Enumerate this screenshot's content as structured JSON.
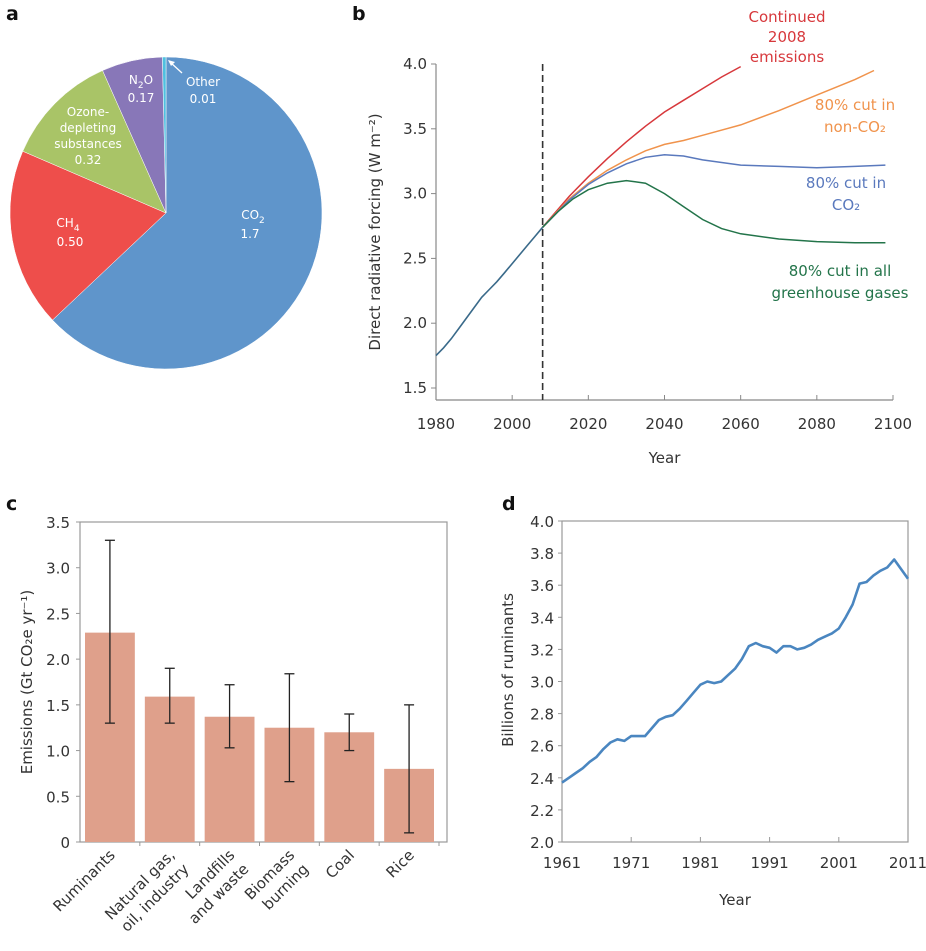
{
  "chart_data": [
    {
      "panel": "a",
      "type": "pie",
      "title": "",
      "slices": [
        {
          "label": "CO2",
          "label_main": "CO",
          "label_sub": "2",
          "value": 1.7,
          "value_text": "1.7",
          "color": "#5f95cb"
        },
        {
          "label": "CH4",
          "label_main": "CH",
          "label_sub": "4",
          "value": 0.5,
          "value_text": "0.50",
          "color": "#ee4e4b"
        },
        {
          "label": "Ozone-depleting substances",
          "lines": [
            "Ozone-",
            "depleting",
            "substances"
          ],
          "value": 0.32,
          "value_text": "0.32",
          "color": "#a9c467"
        },
        {
          "label": "N2O",
          "label_main": "N",
          "label_sub": "2",
          "label_tail": "O",
          "value": 0.17,
          "value_text": "0.17",
          "color": "#8877b8"
        },
        {
          "label": "Other",
          "value": 0.01,
          "value_text": "0.01",
          "color": "#4fc0e0"
        }
      ]
    },
    {
      "panel": "b",
      "type": "line",
      "xlabel": "Year",
      "ylabel": "Direct radiative forcing (W m⁻²)",
      "xlim": [
        1980,
        2100
      ],
      "ylim": [
        1.4,
        4.0
      ],
      "xticks": [
        1980,
        2000,
        2020,
        2040,
        2060,
        2080,
        2100
      ],
      "yticks": [
        "1.5",
        "2.0",
        "2.5",
        "3.0",
        "3.5",
        "4.0"
      ],
      "yticks_values": [
        1.5,
        2.0,
        2.5,
        3.0,
        3.5,
        4.0
      ],
      "vline": 2008,
      "history": {
        "x": [
          1980,
          1982,
          1984,
          1986,
          1988,
          1990,
          1992,
          1994,
          1996,
          1998,
          2000,
          2002,
          2004,
          2006,
          2008
        ],
        "y": [
          1.75,
          1.81,
          1.88,
          1.96,
          2.04,
          2.12,
          2.2,
          2.26,
          2.32,
          2.39,
          2.46,
          2.53,
          2.6,
          2.67,
          2.74
        ]
      },
      "series": [
        {
          "name": "Continued 2008 emissions",
          "label_lines": [
            "Continued",
            "2008",
            "emissions"
          ],
          "color": "#d7383c",
          "x": [
            2008,
            2015,
            2020,
            2025,
            2030,
            2035,
            2040,
            2045,
            2050,
            2055,
            2060
          ],
          "y": [
            2.74,
            2.98,
            3.13,
            3.27,
            3.4,
            3.52,
            3.63,
            3.72,
            3.81,
            3.9,
            3.98
          ]
        },
        {
          "name": "80% cut in non-CO2",
          "label_lines": [
            "80% cut in",
            "non-CO₂"
          ],
          "color": "#f0934c",
          "x": [
            2008,
            2015,
            2020,
            2025,
            2030,
            2035,
            2040,
            2045,
            2050,
            2060,
            2070,
            2080,
            2090,
            2095
          ],
          "y": [
            2.74,
            2.96,
            3.08,
            3.18,
            3.26,
            3.33,
            3.38,
            3.41,
            3.45,
            3.53,
            3.64,
            3.76,
            3.88,
            3.95
          ]
        },
        {
          "name": "80% cut in CO2",
          "label_lines": [
            "80% cut in",
            "CO₂"
          ],
          "color": "#5a79bd",
          "x": [
            2008,
            2015,
            2020,
            2025,
            2030,
            2035,
            2040,
            2045,
            2050,
            2060,
            2070,
            2080,
            2090,
            2098
          ],
          "y": [
            2.74,
            2.95,
            3.07,
            3.16,
            3.23,
            3.28,
            3.3,
            3.29,
            3.26,
            3.22,
            3.21,
            3.2,
            3.21,
            3.22
          ]
        },
        {
          "name": "80% cut in all greenhouse gases",
          "label_lines": [
            "80% cut in all",
            "greenhouse gases"
          ],
          "color": "#23744a",
          "x": [
            2008,
            2012,
            2016,
            2020,
            2025,
            2030,
            2035,
            2040,
            2045,
            2050,
            2055,
            2060,
            2070,
            2080,
            2090,
            2098
          ],
          "y": [
            2.74,
            2.86,
            2.96,
            3.03,
            3.08,
            3.1,
            3.08,
            3.0,
            2.9,
            2.8,
            2.73,
            2.69,
            2.65,
            2.63,
            2.62,
            2.62
          ]
        }
      ]
    },
    {
      "panel": "c",
      "type": "bar",
      "xlabel": "",
      "ylabel": "Emissions (Gt CO₂e yr⁻¹)",
      "ylim": [
        0,
        3.5
      ],
      "yticks": [
        "0",
        "0.5",
        "1.0",
        "1.5",
        "2.0",
        "2.5",
        "3.0",
        "3.5"
      ],
      "yticks_values": [
        0,
        0.5,
        1.0,
        1.5,
        2.0,
        2.5,
        3.0,
        3.5
      ],
      "bar_color": "#dfa08b",
      "categories": [
        "Ruminants",
        "Natural gas, oil, industry",
        "Landfills and waste",
        "Biomass burning",
        "Coal",
        "Rice"
      ],
      "category_lines": [
        [
          "Ruminants"
        ],
        [
          "Natural gas,",
          "oil, industry"
        ],
        [
          "Landfills",
          "and waste"
        ],
        [
          "Biomass",
          "burning"
        ],
        [
          "Coal"
        ],
        [
          "Rice"
        ]
      ],
      "values": [
        2.29,
        1.59,
        1.37,
        1.25,
        1.2,
        0.8
      ],
      "error_low": [
        1.3,
        1.3,
        1.03,
        0.66,
        1.0,
        0.1
      ],
      "error_high": [
        3.3,
        1.9,
        1.72,
        1.84,
        1.4,
        1.5
      ]
    },
    {
      "panel": "d",
      "type": "line",
      "xlabel": "Year",
      "ylabel": "Billions of ruminants",
      "xlim": [
        1961,
        2011
      ],
      "ylim": [
        2.0,
        4.0
      ],
      "xticks": [
        1961,
        1971,
        1981,
        1991,
        2001,
        2011
      ],
      "yticks": [
        "2.0",
        "2.2",
        "2.4",
        "2.6",
        "2.8",
        "3.0",
        "3.2",
        "3.4",
        "3.6",
        "3.8",
        "4.0"
      ],
      "yticks_values": [
        2.0,
        2.2,
        2.4,
        2.6,
        2.8,
        3.0,
        3.2,
        3.4,
        3.6,
        3.8,
        4.0
      ],
      "color": "#4a86c0",
      "x": [
        1961,
        1962,
        1963,
        1964,
        1965,
        1966,
        1967,
        1968,
        1969,
        1970,
        1971,
        1972,
        1973,
        1974,
        1975,
        1976,
        1977,
        1978,
        1979,
        1980,
        1981,
        1982,
        1983,
        1984,
        1985,
        1986,
        1987,
        1988,
        1989,
        1990,
        1991,
        1992,
        1993,
        1994,
        1995,
        1996,
        1997,
        1998,
        1999,
        2000,
        2001,
        2002,
        2003,
        2004,
        2005,
        2006,
        2007,
        2008,
        2009,
        2010,
        2011
      ],
      "y": [
        2.37,
        2.4,
        2.43,
        2.46,
        2.5,
        2.53,
        2.58,
        2.62,
        2.64,
        2.63,
        2.66,
        2.66,
        2.66,
        2.71,
        2.76,
        2.78,
        2.79,
        2.83,
        2.88,
        2.93,
        2.98,
        3.0,
        2.99,
        3.0,
        3.04,
        3.08,
        3.14,
        3.22,
        3.24,
        3.22,
        3.21,
        3.18,
        3.22,
        3.22,
        3.2,
        3.21,
        3.23,
        3.26,
        3.28,
        3.3,
        3.33,
        3.4,
        3.48,
        3.61,
        3.62,
        3.66,
        3.69,
        3.71,
        3.76,
        3.7,
        3.64
      ]
    }
  ],
  "panels": {
    "a": {
      "letter": "a"
    },
    "b": {
      "letter": "b"
    },
    "c": {
      "letter": "c"
    },
    "d": {
      "letter": "d"
    }
  }
}
